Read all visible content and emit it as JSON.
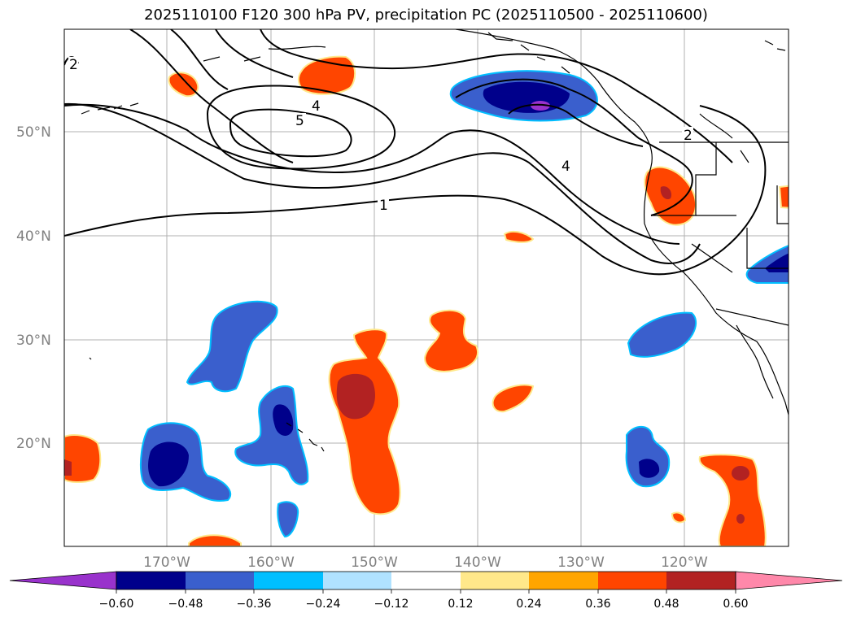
{
  "title": "2025110100 F120 300 hPa PV, precipitation PC (2025110500 - 2025110600)",
  "map": {
    "lat_labels": [
      "50°N",
      "40°N",
      "30°N",
      "20°N"
    ],
    "lon_labels": [
      "170°W",
      "160°W",
      "150°W",
      "140°W",
      "130°W",
      "120°W"
    ],
    "contour_labels": [
      "2",
      "4",
      "5",
      "4",
      "1",
      "2"
    ],
    "colors": {
      "neg_extreme": "#9932cc",
      "neg_060": "#00008b",
      "neg_048": "#3a5fcd",
      "neg_036": "#00bfff",
      "neg_024": "#b0e2ff",
      "pos_024": "#ffe88a",
      "pos_036": "#ffa500",
      "pos_048": "#ff4500",
      "pos_060": "#b22222",
      "pos_extreme": "#ff88aa"
    }
  },
  "colorbar": {
    "tick_labels": [
      "−0.60",
      "−0.48",
      "−0.36",
      "−0.24",
      "−0.12",
      "0.12",
      "0.24",
      "0.36",
      "0.48",
      "0.60"
    ],
    "colors": [
      "#9932cc",
      "#00008b",
      "#3a5fcd",
      "#3a5fcd",
      "#00bfff",
      "#b0e2ff",
      "#ffffff",
      "#ffe88a",
      "#ffa500",
      "#ff4500",
      "#b22222",
      "#ff88aa"
    ]
  }
}
